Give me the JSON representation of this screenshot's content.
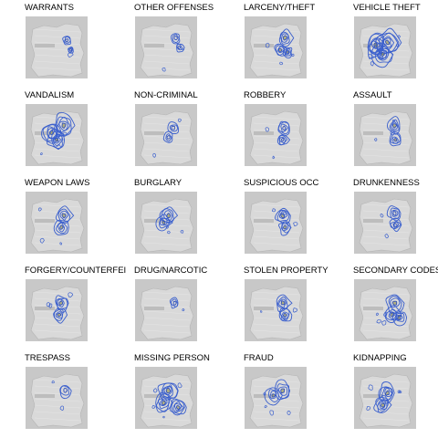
{
  "chart_data": [
    {
      "type": "heatmap",
      "title": "WARRANTS",
      "intensity": 0.15,
      "hotspots": [
        [
          0.72,
          0.35
        ],
        [
          0.8,
          0.55
        ]
      ]
    },
    {
      "type": "heatmap",
      "title": "OTHER OFFENSES",
      "intensity": 0.25,
      "hotspots": [
        [
          0.7,
          0.3
        ],
        [
          0.78,
          0.5
        ]
      ]
    },
    {
      "type": "heatmap",
      "title": "LARCENY/THEFT",
      "intensity": 0.45,
      "hotspots": [
        [
          0.7,
          0.3
        ],
        [
          0.6,
          0.55
        ],
        [
          0.75,
          0.6
        ]
      ]
    },
    {
      "type": "heatmap",
      "title": "VEHICLE THEFT",
      "intensity": 1.0,
      "hotspots": [
        [
          0.55,
          0.4
        ],
        [
          0.3,
          0.45
        ],
        [
          0.45,
          0.65
        ]
      ]
    },
    {
      "type": "heatmap",
      "title": "VANDALISM",
      "intensity": 0.85,
      "hotspots": [
        [
          0.65,
          0.3
        ],
        [
          0.4,
          0.45
        ],
        [
          0.5,
          0.6
        ]
      ]
    },
    {
      "type": "heatmap",
      "title": "NON-CRIMINAL",
      "intensity": 0.3,
      "hotspots": [
        [
          0.65,
          0.35
        ],
        [
          0.55,
          0.55
        ]
      ]
    },
    {
      "type": "heatmap",
      "title": "ROBBERY",
      "intensity": 0.4,
      "hotspots": [
        [
          0.68,
          0.35
        ],
        [
          0.65,
          0.6
        ]
      ]
    },
    {
      "type": "heatmap",
      "title": "ASSAULT",
      "intensity": 0.45,
      "hotspots": [
        [
          0.7,
          0.3
        ],
        [
          0.72,
          0.6
        ]
      ]
    },
    {
      "type": "heatmap",
      "title": "WEAPON LAWS",
      "intensity": 0.55,
      "hotspots": [
        [
          0.65,
          0.35
        ],
        [
          0.6,
          0.6
        ]
      ]
    },
    {
      "type": "heatmap",
      "title": "BURGLARY",
      "intensity": 0.55,
      "hotspots": [
        [
          0.55,
          0.35
        ],
        [
          0.45,
          0.5
        ]
      ]
    },
    {
      "type": "heatmap",
      "title": "SUSPICIOUS OCC",
      "intensity": 0.5,
      "hotspots": [
        [
          0.65,
          0.35
        ],
        [
          0.7,
          0.6
        ]
      ]
    },
    {
      "type": "heatmap",
      "title": "DRUNKENNESS",
      "intensity": 0.4,
      "hotspots": [
        [
          0.7,
          0.3
        ],
        [
          0.72,
          0.55
        ]
      ]
    },
    {
      "type": "heatmap",
      "title": "FORGERY/COUNTERFEI",
      "intensity": 0.5,
      "hotspots": [
        [
          0.6,
          0.35
        ],
        [
          0.55,
          0.6
        ]
      ]
    },
    {
      "type": "heatmap",
      "title": "DRUG/NARCOTIC",
      "intensity": 0.2,
      "hotspots": [
        [
          0.68,
          0.35
        ]
      ]
    },
    {
      "type": "heatmap",
      "title": "STOLEN PROPERTY",
      "intensity": 0.5,
      "hotspots": [
        [
          0.65,
          0.35
        ],
        [
          0.7,
          0.6
        ]
      ]
    },
    {
      "type": "heatmap",
      "title": "SECONDARY CODES",
      "intensity": 0.6,
      "hotspots": [
        [
          0.7,
          0.35
        ],
        [
          0.65,
          0.6
        ],
        [
          0.8,
          0.65
        ]
      ]
    },
    {
      "type": "heatmap",
      "title": "TRESPASS",
      "intensity": 0.35,
      "hotspots": [
        [
          0.68,
          0.35
        ]
      ]
    },
    {
      "type": "heatmap",
      "title": "MISSING PERSON",
      "intensity": 0.75,
      "hotspots": [
        [
          0.55,
          0.35
        ],
        [
          0.45,
          0.6
        ],
        [
          0.75,
          0.7
        ]
      ]
    },
    {
      "type": "heatmap",
      "title": "FRAUD",
      "intensity": 0.6,
      "hotspots": [
        [
          0.65,
          0.35
        ],
        [
          0.45,
          0.45
        ]
      ]
    },
    {
      "type": "heatmap",
      "title": "KIDNAPPING",
      "intensity": 0.7,
      "hotspots": [
        [
          0.55,
          0.4
        ],
        [
          0.45,
          0.65
        ]
      ]
    }
  ],
  "colors": {
    "map_background": "#c8c8c8",
    "land": "#d9d9d9",
    "contour_outer": "#3a5fcd",
    "contour_inner": "#2f4fb8",
    "hot_fill": "#8c8a3a"
  }
}
